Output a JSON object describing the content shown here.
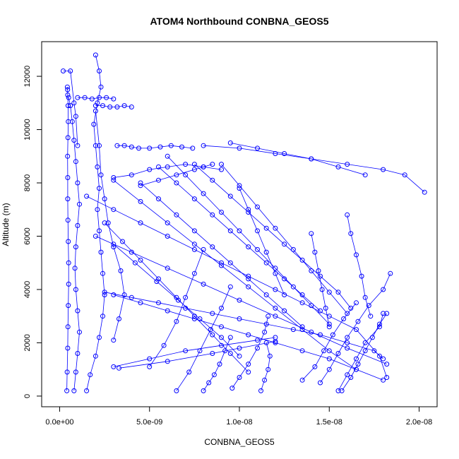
{
  "chart_data": {
    "type": "scatter",
    "title": "ATOM4 Northbound CONBNA_GEOS5",
    "xlabel": "CONBNA_GEOS5",
    "ylabel": "Altitude (m)",
    "xlim": [
      -1e-09,
      2.1e-08
    ],
    "ylim": [
      -400,
      13300
    ],
    "x_ticks": [
      0,
      5e-09,
      1e-08,
      1.5e-08,
      2e-08
    ],
    "x_tick_labels": [
      "0.0e+00",
      "5.0e-09",
      "1.0e-08",
      "1.5e-08",
      "2.0e-08"
    ],
    "y_ticks": [
      0,
      2000,
      4000,
      6000,
      8000,
      10000,
      12000
    ],
    "y_tick_labels": [
      "0",
      "2000",
      "4000",
      "6000",
      "8000",
      "10000",
      "12000"
    ],
    "color": "#0000ff",
    "series": [
      {
        "x": [
          4e-10,
          4.2e-10,
          4.5e-10,
          4.6e-10,
          4.8e-10,
          5e-10,
          5e-10,
          4.8e-10,
          4.6e-10,
          4.5e-10,
          4.5e-10,
          4.4e-10,
          4.6e-10,
          4.8e-10,
          4.7e-10,
          4.5e-10,
          4.4e-10,
          4.3e-10
        ],
        "y": [
          200,
          900,
          1800,
          2600,
          3400,
          4200,
          5000,
          5800,
          6600,
          7400,
          8200,
          9000,
          9700,
          10300,
          10900,
          11300,
          11500,
          11600
        ]
      },
      {
        "x": [
          8e-10,
          9e-10,
          1e-09,
          1.1e-09,
          1e-09,
          9e-10,
          8.5e-10,
          9e-10,
          1e-09,
          1.1e-09,
          1e-09,
          9e-10,
          8e-10,
          7e-10,
          6e-10,
          5e-10
        ],
        "y": [
          200,
          900,
          1600,
          2400,
          3200,
          4000,
          4800,
          5600,
          6400,
          7200,
          8000,
          8800,
          9600,
          10300,
          10900,
          11200
        ]
      },
      {
        "x": [
          1.5e-09,
          1.7e-09,
          2e-09,
          2.2e-09,
          2.4e-09,
          2.5e-09,
          2.4e-09,
          2.3e-09,
          2.2e-09,
          2.1e-09,
          2.2e-09,
          2.1e-09,
          2e-09,
          1.9e-09,
          2.1e-09,
          2.3e-09,
          2.2e-09,
          2e-09
        ],
        "y": [
          200,
          800,
          1500,
          2200,
          3000,
          3800,
          4600,
          5400,
          6200,
          7000,
          7800,
          8600,
          9400,
          10200,
          11000,
          11600,
          12200,
          12800
        ]
      },
      {
        "x": [
          3e-09,
          3.3e-09,
          3.6e-09,
          3.4e-09,
          3e-09,
          2.7e-09,
          2.5e-09,
          2.3e-09,
          2.2e-09,
          2e-09
        ],
        "y": [
          2100,
          2900,
          3800,
          4700,
          5600,
          6500,
          7400,
          8300,
          9400,
          10700
        ]
      },
      {
        "x": [
          5e-09,
          5.8e-09,
          6.5e-09,
          7e-09,
          7.5e-09,
          8e-09
        ],
        "y": [
          1100,
          1900,
          2800,
          3700,
          4600,
          5500
        ]
      },
      {
        "x": [
          6.5e-09,
          7.2e-09,
          7.8e-09,
          8.4e-09,
          9e-09,
          9.5e-09
        ],
        "y": [
          200,
          900,
          1700,
          2500,
          3300,
          4100
        ]
      },
      {
        "x": [
          8e-09,
          8.3e-09,
          8.6e-09,
          8.9e-09,
          9.2e-09,
          9.5e-09
        ],
        "y": [
          200,
          500,
          800,
          1200,
          1700,
          2200
        ]
      },
      {
        "x": [
          9.6e-09,
          1e-08,
          1.05e-08,
          1.1e-08,
          1.14e-08,
          1.16e-08
        ],
        "y": [
          300,
          700,
          1200,
          1800,
          2400,
          3000
        ]
      },
      {
        "x": [
          1.12e-08,
          1.14e-08,
          1.16e-08,
          1.17e-08,
          1.15e-08
        ],
        "y": [
          200,
          600,
          1000,
          1500,
          2000
        ]
      },
      {
        "x": [
          3e-09,
          5e-09,
          7e-09,
          9e-09,
          1.1e-08,
          1.2e-08
        ],
        "y": [
          1100,
          1400,
          1700,
          1900,
          2100,
          2200
        ]
      },
      {
        "x": [
          3.3e-09,
          6e-09,
          8.5e-09,
          1e-08,
          1.2e-08
        ],
        "y": [
          1050,
          1300,
          1600,
          1800,
          2050
        ]
      },
      {
        "x": [
          1.55e-08,
          1.6e-08,
          1.65e-08,
          1.7e-08,
          1.78e-08,
          1.8e-08
        ],
        "y": [
          200,
          800,
          1400,
          2000,
          2600,
          3100
        ]
      },
      {
        "x": [
          1.45e-08,
          1.5e-08,
          1.55e-08,
          1.6e-08,
          1.66e-08,
          1.72e-08,
          1.8e-08,
          1.84e-08
        ],
        "y": [
          500,
          1000,
          1600,
          2200,
          2800,
          3400,
          4000,
          4600
        ]
      },
      {
        "x": [
          1.57e-08,
          1.62e-08,
          1.66e-08,
          1.7e-08,
          1.74e-08,
          1.78e-08,
          1.82e-08
        ],
        "y": [
          200,
          700,
          1200,
          1700,
          2200,
          2700,
          3100
        ]
      },
      {
        "x": [
          1.35e-08,
          1.42e-08,
          1.47e-08,
          1.52e-08,
          1.58e-08,
          1.65e-08
        ],
        "y": [
          600,
          1100,
          1700,
          2300,
          2900,
          3500
        ]
      },
      {
        "x": [
          4.5e-09,
          5.5e-09,
          6.5e-09,
          7.5e-09,
          8.5e-09,
          9.5e-09,
          1.05e-08,
          1.15e-08,
          1.25e-08,
          1.35e-08
        ],
        "y": [
          8000,
          7400,
          6800,
          6200,
          5600,
          5000,
          4400,
          3800,
          3200,
          2600
        ]
      },
      {
        "x": [
          5.5e-09,
          6.5e-09,
          7.5e-09,
          8.5e-09,
          9.5e-09,
          1.05e-08,
          1.15e-08,
          1.25e-08,
          1.35e-08,
          1.45e-08
        ],
        "y": [
          8600,
          8000,
          7400,
          6800,
          6200,
          5600,
          5000,
          4400,
          3800,
          3200
        ]
      },
      {
        "x": [
          6e-09,
          7e-09,
          8e-09,
          9e-09,
          1e-08,
          1.1e-08,
          1.2e-08,
          1.3e-08,
          1.4e-08,
          1.5e-08
        ],
        "y": [
          9000,
          8300,
          7600,
          6900,
          6200,
          5500,
          4800,
          4100,
          3400,
          2700
        ]
      },
      {
        "x": [
          7.5e-09,
          8.5e-09,
          9.5e-09,
          1.05e-08,
          1.15e-08,
          1.25e-08,
          1.35e-08,
          1.45e-08,
          1.55e-08,
          1.62e-08
        ],
        "y": [
          8700,
          8100,
          7500,
          6900,
          6300,
          5700,
          5100,
          4500,
          3900,
          3300
        ]
      },
      {
        "x": [
          9e-09,
          1e-08,
          1.1e-08,
          1.2e-08,
          1.3e-08,
          1.4e-08,
          1.5e-08,
          1.6e-08
        ],
        "y": [
          8700,
          7900,
          7100,
          6300,
          5500,
          4700,
          3900,
          3100
        ]
      },
      {
        "x": [
          3e-09,
          4.5e-09,
          6e-09,
          7.5e-09,
          9e-09,
          1.05e-08,
          1.2e-08,
          1.35e-08,
          1.5e-08,
          1.65e-08
        ],
        "y": [
          8100,
          7300,
          6500,
          5700,
          4900,
          4100,
          3300,
          2500,
          1700,
          1000
        ]
      },
      {
        "x": [
          2.5e-09,
          3.5e-09,
          4.5e-09,
          5.5e-09,
          6.5e-09,
          7.5e-09,
          8.5e-09,
          9.5e-09,
          1.05e-08
        ],
        "y": [
          6500,
          5800,
          5100,
          4400,
          3700,
          3000,
          2300,
          1600,
          900
        ]
      },
      {
        "x": [
          3e-09,
          4.2e-09,
          5.4e-09,
          6.6e-09,
          7.8e-09,
          9e-09,
          1e-08
        ],
        "y": [
          5700,
          5000,
          4300,
          3600,
          2900,
          2200,
          1500
        ]
      },
      {
        "x": [
          2.5e-09,
          4e-09,
          5.5e-09,
          7e-09,
          8.5e-09,
          1e-08,
          1.15e-08,
          1.3e-08,
          1.45e-08,
          1.6e-08,
          1.75e-08,
          1.8e-08
        ],
        "y": [
          3900,
          3700,
          3500,
          3300,
          3100,
          2900,
          2700,
          2500,
          2300,
          2000,
          1700,
          1400
        ]
      },
      {
        "x": [
          3e-09,
          4.5e-09,
          6e-09,
          7.5e-09,
          9e-09,
          1.05e-08,
          1.2e-08,
          1.35e-08,
          1.5e-08,
          1.65e-08,
          1.8e-08
        ],
        "y": [
          3800,
          3500,
          3200,
          2900,
          2600,
          2300,
          2000,
          1700,
          1400,
          1000,
          600
        ]
      },
      {
        "x": [
          1.5e-09,
          3e-09,
          4.5e-09,
          6e-09,
          7.5e-09,
          9e-09,
          1.05e-08,
          1.2e-08,
          1.35e-08,
          1.5e-08,
          1.65e-08,
          1.78e-08,
          1.82e-08
        ],
        "y": [
          7500,
          7000,
          6500,
          6000,
          5500,
          5000,
          4500,
          4000,
          3500,
          3000,
          2500,
          1500,
          700
        ]
      },
      {
        "x": [
          2e-09,
          4e-09,
          6e-09,
          8e-09,
          1e-08,
          1.2e-08,
          1.4e-08,
          1.6e-08,
          1.82e-08
        ],
        "y": [
          6000,
          5400,
          4800,
          4200,
          3600,
          3000,
          2400,
          1800,
          1200
        ]
      },
      {
        "x": [
          8e-09,
          1e-08,
          1.2e-08,
          1.4e-08,
          1.6e-08,
          1.8e-08,
          1.92e-08,
          2.03e-08
        ],
        "y": [
          9400,
          9300,
          9100,
          8900,
          8700,
          8500,
          8300,
          7650
        ]
      },
      {
        "x": [
          9.5e-09,
          1.1e-08,
          1.25e-08,
          1.4e-08,
          1.55e-08,
          1.7e-08
        ],
        "y": [
          9500,
          9300,
          9100,
          8900,
          8600,
          8300
        ]
      },
      {
        "x": [
          3e-09,
          4e-09,
          5e-09,
          6e-09,
          7e-09,
          8e-09,
          9e-09
        ],
        "y": [
          8200,
          8300,
          8500,
          8600,
          8700,
          8600,
          8500
        ]
      },
      {
        "x": [
          4.5e-09,
          5.5e-09,
          6.5e-09,
          7.5e-09,
          8e-09,
          8.5e-09
        ],
        "y": [
          7900,
          8100,
          8300,
          8500,
          8600,
          8700
        ]
      },
      {
        "x": [
          3.2e-09,
          3.6e-09,
          4e-09,
          4.4e-09,
          5e-09,
          5.6e-09,
          6.2e-09,
          6.8e-09,
          7.4e-09
        ],
        "y": [
          9400,
          9400,
          9350,
          9300,
          9300,
          9350,
          9400,
          9350,
          9300
        ]
      },
      {
        "x": [
          2e-09,
          2.4e-09,
          2.8e-09,
          3.2e-09,
          3.6e-09,
          4e-09
        ],
        "y": [
          10900,
          10900,
          10850,
          10850,
          10900,
          10850
        ]
      },
      {
        "x": [
          1e-09,
          1.4e-09,
          1.8e-09,
          2.2e-09,
          2.6e-09,
          3e-09
        ],
        "y": [
          11200,
          11200,
          11150,
          11200,
          11200,
          11150
        ]
      },
      {
        "x": [
          2e-10,
          6e-10,
          8e-10,
          9e-10,
          1e-09
        ],
        "y": [
          12200,
          12200,
          11000,
          10500,
          9400
        ]
      },
      {
        "x": [
          1.6e-08,
          1.62e-08,
          1.65e-08,
          1.68e-08,
          1.7e-08,
          1.73e-08
        ],
        "y": [
          6800,
          6100,
          5300,
          4500,
          3700,
          3000
        ]
      },
      {
        "x": [
          1.4e-08,
          1.42e-08,
          1.44e-08,
          1.46e-08,
          1.48e-08,
          1.5e-08
        ],
        "y": [
          6100,
          5400,
          4700,
          4000,
          3300,
          2600
        ]
      },
      {
        "x": [
          1e-08,
          1.05e-08,
          1.1e-08,
          1.15e-08,
          1.2e-08,
          1.25e-08
        ],
        "y": [
          7800,
          7000,
          6200,
          5400,
          4600,
          3800
        ]
      }
    ]
  }
}
